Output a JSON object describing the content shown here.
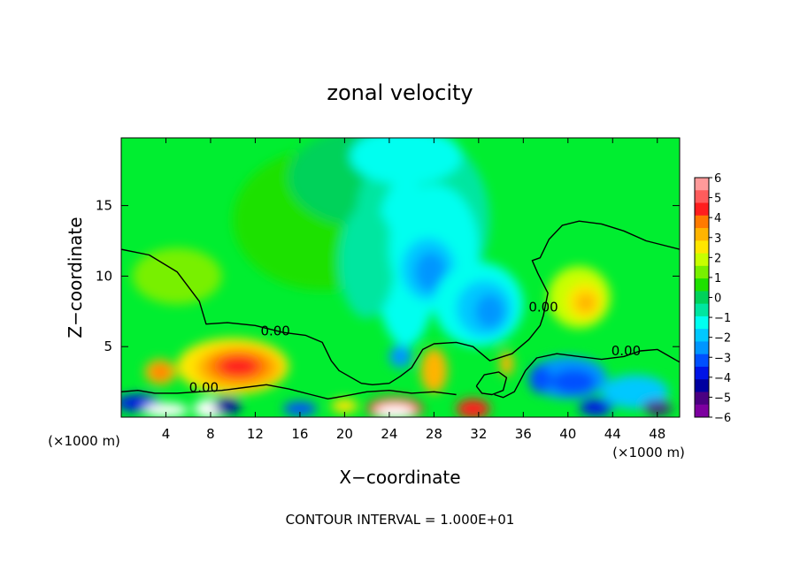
{
  "chart_data": {
    "type": "heatmap",
    "title": "zonal velocity",
    "xlabel": "X−coordinate",
    "ylabel": "Z−coordinate",
    "x_unit_left": "(×1000 m)",
    "x_unit_right": "(×1000 m)",
    "footer": "CONTOUR INTERVAL = 1.000E+01",
    "xlim": [
      0,
      50
    ],
    "ylim": [
      0,
      19.8
    ],
    "x_ticks": [
      4,
      8,
      12,
      16,
      20,
      24,
      28,
      32,
      36,
      40,
      44,
      48
    ],
    "y_ticks": [
      5,
      10,
      15
    ],
    "contour_labels": [
      {
        "text": "0.00",
        "x": 13.8,
        "y": 5.8
      },
      {
        "text": "0.00",
        "x": 7.4,
        "y": 1.8
      },
      {
        "text": "0.00",
        "x": 37.8,
        "y": 7.5
      },
      {
        "text": "0.00",
        "x": 45.2,
        "y": 4.4
      }
    ],
    "zero_contours": [
      [
        [
          0,
          11.9
        ],
        [
          2.5,
          11.5
        ],
        [
          5,
          10.3
        ],
        [
          7,
          8.2
        ],
        [
          7.6,
          6.6
        ],
        [
          9.5,
          6.7
        ],
        [
          12,
          6.5
        ],
        [
          14.5,
          6.0
        ],
        [
          16.5,
          5.8
        ],
        [
          18,
          5.3
        ],
        [
          18.8,
          4.0
        ],
        [
          19.5,
          3.3
        ],
        [
          21.5,
          2.4
        ],
        [
          22.5,
          2.3
        ],
        [
          24,
          2.4
        ],
        [
          25,
          2.9
        ],
        [
          26,
          3.5
        ],
        [
          27,
          4.8
        ],
        [
          28,
          5.2
        ],
        [
          30,
          5.3
        ],
        [
          31.5,
          5.0
        ],
        [
          33,
          4.0
        ],
        [
          35,
          4.5
        ],
        [
          36.5,
          5.5
        ],
        [
          37.5,
          6.5
        ],
        [
          37.8,
          7.2
        ],
        [
          38.2,
          8.8
        ],
        [
          37.3,
          10.2
        ],
        [
          36.8,
          11.1
        ],
        [
          37.5,
          11.3
        ],
        [
          38.3,
          12.6
        ],
        [
          39.5,
          13.6
        ],
        [
          41,
          13.9
        ],
        [
          43,
          13.7
        ],
        [
          45,
          13.2
        ],
        [
          47,
          12.5
        ],
        [
          50,
          11.9
        ]
      ],
      [
        [
          0,
          1.8
        ],
        [
          1.5,
          1.9
        ],
        [
          3,
          1.7
        ],
        [
          5,
          1.7
        ],
        [
          7,
          1.8
        ],
        [
          9,
          1.9
        ],
        [
          11,
          2.1
        ],
        [
          13,
          2.3
        ],
        [
          15,
          2.0
        ],
        [
          17,
          1.6
        ],
        [
          18.5,
          1.3
        ],
        [
          20,
          1.5
        ],
        [
          22,
          1.8
        ],
        [
          24,
          1.9
        ],
        [
          26,
          1.7
        ],
        [
          28,
          1.8
        ],
        [
          30,
          1.6
        ]
      ],
      [
        [
          33.4,
          1.6
        ],
        [
          34.2,
          1.4
        ],
        [
          35.2,
          1.8
        ],
        [
          36.2,
          3.3
        ],
        [
          37.2,
          4.2
        ],
        [
          39,
          4.5
        ],
        [
          41,
          4.3
        ],
        [
          43,
          4.1
        ],
        [
          45,
          4.3
        ],
        [
          46.5,
          4.7
        ],
        [
          48,
          4.8
        ],
        [
          50,
          3.9
        ]
      ],
      [
        [
          31.8,
          2.2
        ],
        [
          32.5,
          3.0
        ],
        [
          33.8,
          3.2
        ],
        [
          34.5,
          2.8
        ],
        [
          34.2,
          1.9
        ],
        [
          33.2,
          1.6
        ],
        [
          32.3,
          1.7
        ],
        [
          31.8,
          2.2
        ]
      ]
    ],
    "colorbar": {
      "ticks": [
        "6",
        "5",
        "4",
        "3",
        "2",
        "1",
        "0",
        "−1",
        "−2",
        "−3",
        "−4",
        "−5",
        "−6"
      ],
      "colors": [
        "#ff9a9a",
        "#ff5c5c",
        "#ff1e1e",
        "#ff7a00",
        "#ffb400",
        "#ffe600",
        "#c8ff00",
        "#78f000",
        "#1ee100",
        "#00d25a",
        "#00e6a0",
        "#00fff0",
        "#00c8ff",
        "#0096ff",
        "#0050ff",
        "#0014e6",
        "#0000a0",
        "#4b0082",
        "#7d00a0"
      ]
    },
    "fields": {
      "background": "#00ee30",
      "blobs": [
        {
          "x": 18,
          "y": 14,
          "rx": 8,
          "ry": 5,
          "color": "#1ee100"
        },
        {
          "x": 22,
          "y": 17,
          "rx": 7,
          "ry": 3.5,
          "color": "#00d25a"
        },
        {
          "x": 27,
          "y": 14,
          "rx": 6,
          "ry": 6,
          "color": "#00e6a0"
        },
        {
          "x": 25.5,
          "y": 18.5,
          "rx": 5,
          "ry": 2,
          "color": "#00fff0"
        },
        {
          "x": 25.5,
          "y": 11,
          "rx": 2.8,
          "ry": 6,
          "color": "#00fff0"
        },
        {
          "x": 22,
          "y": 11,
          "rx": 2.5,
          "ry": 4,
          "color": "#00e6a0"
        },
        {
          "x": 28,
          "y": 12,
          "rx": 4,
          "ry": 4.5,
          "color": "#00fff0"
        },
        {
          "x": 27.5,
          "y": 10.5,
          "rx": 2.4,
          "ry": 2.2,
          "color": "#00c8ff"
        },
        {
          "x": 27.7,
          "y": 10.3,
          "rx": 1.4,
          "ry": 1.4,
          "color": "#0096ff"
        },
        {
          "x": 32,
          "y": 8,
          "rx": 4,
          "ry": 3,
          "color": "#00fff0"
        },
        {
          "x": 32.5,
          "y": 7.7,
          "rx": 2.5,
          "ry": 2,
          "color": "#00c8ff"
        },
        {
          "x": 33,
          "y": 7.5,
          "rx": 1.3,
          "ry": 1.2,
          "color": "#0096ff"
        },
        {
          "x": 5,
          "y": 10,
          "rx": 4,
          "ry": 2,
          "color": "#78f000"
        },
        {
          "x": 41,
          "y": 8.5,
          "rx": 2.8,
          "ry": 2.2,
          "color": "#c8ff00"
        },
        {
          "x": 41.5,
          "y": 8.2,
          "rx": 1.6,
          "ry": 1.3,
          "color": "#ffe600"
        },
        {
          "x": 41.6,
          "y": 8.1,
          "rx": 0.9,
          "ry": 0.7,
          "color": "#ffb400"
        },
        {
          "x": 10,
          "y": 3.6,
          "rx": 5,
          "ry": 2,
          "color": "#ffe600"
        },
        {
          "x": 10.5,
          "y": 3.5,
          "rx": 3.8,
          "ry": 1.5,
          "color": "#ffb400"
        },
        {
          "x": 10.5,
          "y": 3.6,
          "rx": 2.8,
          "ry": 1.1,
          "color": "#ff7a00"
        },
        {
          "x": 10.5,
          "y": 3.6,
          "rx": 1.8,
          "ry": 0.7,
          "color": "#ff1e1e"
        },
        {
          "x": 3.5,
          "y": 3.2,
          "rx": 1.4,
          "ry": 0.9,
          "color": "#ffb400"
        },
        {
          "x": 3.5,
          "y": 3.2,
          "rx": 0.8,
          "ry": 0.5,
          "color": "#ff7a00"
        },
        {
          "x": 28,
          "y": 3.3,
          "rx": 1.2,
          "ry": 1.6,
          "color": "#ffb400"
        },
        {
          "x": 25,
          "y": 4.3,
          "rx": 1.0,
          "ry": 0.8,
          "color": "#0096ff"
        },
        {
          "x": 34.5,
          "y": 3.8,
          "rx": 0.6,
          "ry": 0.9,
          "color": "#ffb400"
        },
        {
          "x": 40,
          "y": 2.8,
          "rx": 3.5,
          "ry": 1.5,
          "color": "#0096ff"
        },
        {
          "x": 40.5,
          "y": 2.5,
          "rx": 2,
          "ry": 0.9,
          "color": "#0050ff"
        },
        {
          "x": 37.5,
          "y": 2.7,
          "rx": 1,
          "ry": 1,
          "color": "#0050ff"
        },
        {
          "x": 46,
          "y": 1.8,
          "rx": 3,
          "ry": 1.2,
          "color": "#00c8ff"
        },
        {
          "x": 1.5,
          "y": 1.0,
          "rx": 2,
          "ry": 0.6,
          "color": "#0014e6"
        },
        {
          "x": 4,
          "y": 0.5,
          "rx": 2,
          "ry": 0.5,
          "color": "#ffffff"
        },
        {
          "x": 8,
          "y": 0.6,
          "rx": 1.5,
          "ry": 0.7,
          "color": "#ffffff"
        },
        {
          "x": 9.5,
          "y": 0.8,
          "rx": 1.2,
          "ry": 0.6,
          "color": "#0000a0"
        },
        {
          "x": 24.5,
          "y": 0.6,
          "rx": 2.5,
          "ry": 0.8,
          "color": "#ff1e1e"
        },
        {
          "x": 24.5,
          "y": 0.4,
          "rx": 1.8,
          "ry": 0.5,
          "color": "#ffffff"
        },
        {
          "x": 31.5,
          "y": 0.6,
          "rx": 1.5,
          "ry": 0.7,
          "color": "#ff1e1e"
        },
        {
          "x": 20,
          "y": 0.8,
          "rx": 1.2,
          "ry": 0.5,
          "color": "#ffe600"
        },
        {
          "x": 16,
          "y": 0.6,
          "rx": 1.5,
          "ry": 0.5,
          "color": "#0050ff"
        },
        {
          "x": 42.5,
          "y": 0.7,
          "rx": 1.5,
          "ry": 0.6,
          "color": "#0014e6"
        },
        {
          "x": 48,
          "y": 0.7,
          "rx": 1.3,
          "ry": 0.5,
          "color": "#4b0082"
        }
      ]
    }
  }
}
